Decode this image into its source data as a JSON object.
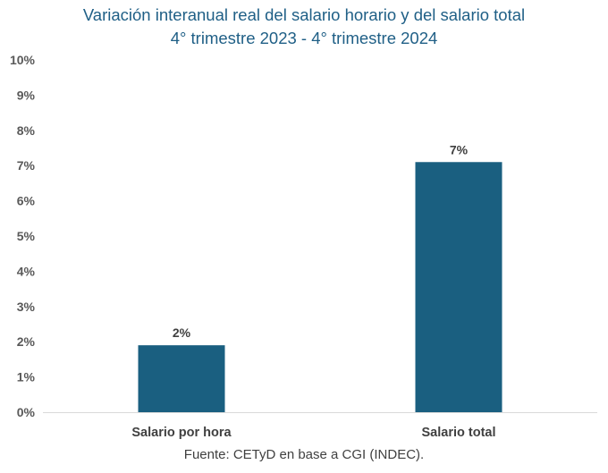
{
  "chart_data": {
    "type": "bar",
    "title": "Variación interanual real del salario horario y del salario total",
    "subtitle": "4° trimestre 2023 - 4° trimestre 2024",
    "categories": [
      "Salario por hora",
      "Salario total"
    ],
    "values": [
      1.9,
      7.1
    ],
    "data_labels": [
      "2%",
      "7%"
    ],
    "ylim": [
      0,
      10
    ],
    "y_ticks": [
      "0%",
      "1%",
      "2%",
      "3%",
      "4%",
      "5%",
      "6%",
      "7%",
      "8%",
      "9%",
      "10%"
    ],
    "grid": false,
    "legend": "none",
    "bar_color": "#1a5f80",
    "title_color": "#1f5f86"
  },
  "source": "Fuente: CETyD en base a CGI (INDEC)."
}
